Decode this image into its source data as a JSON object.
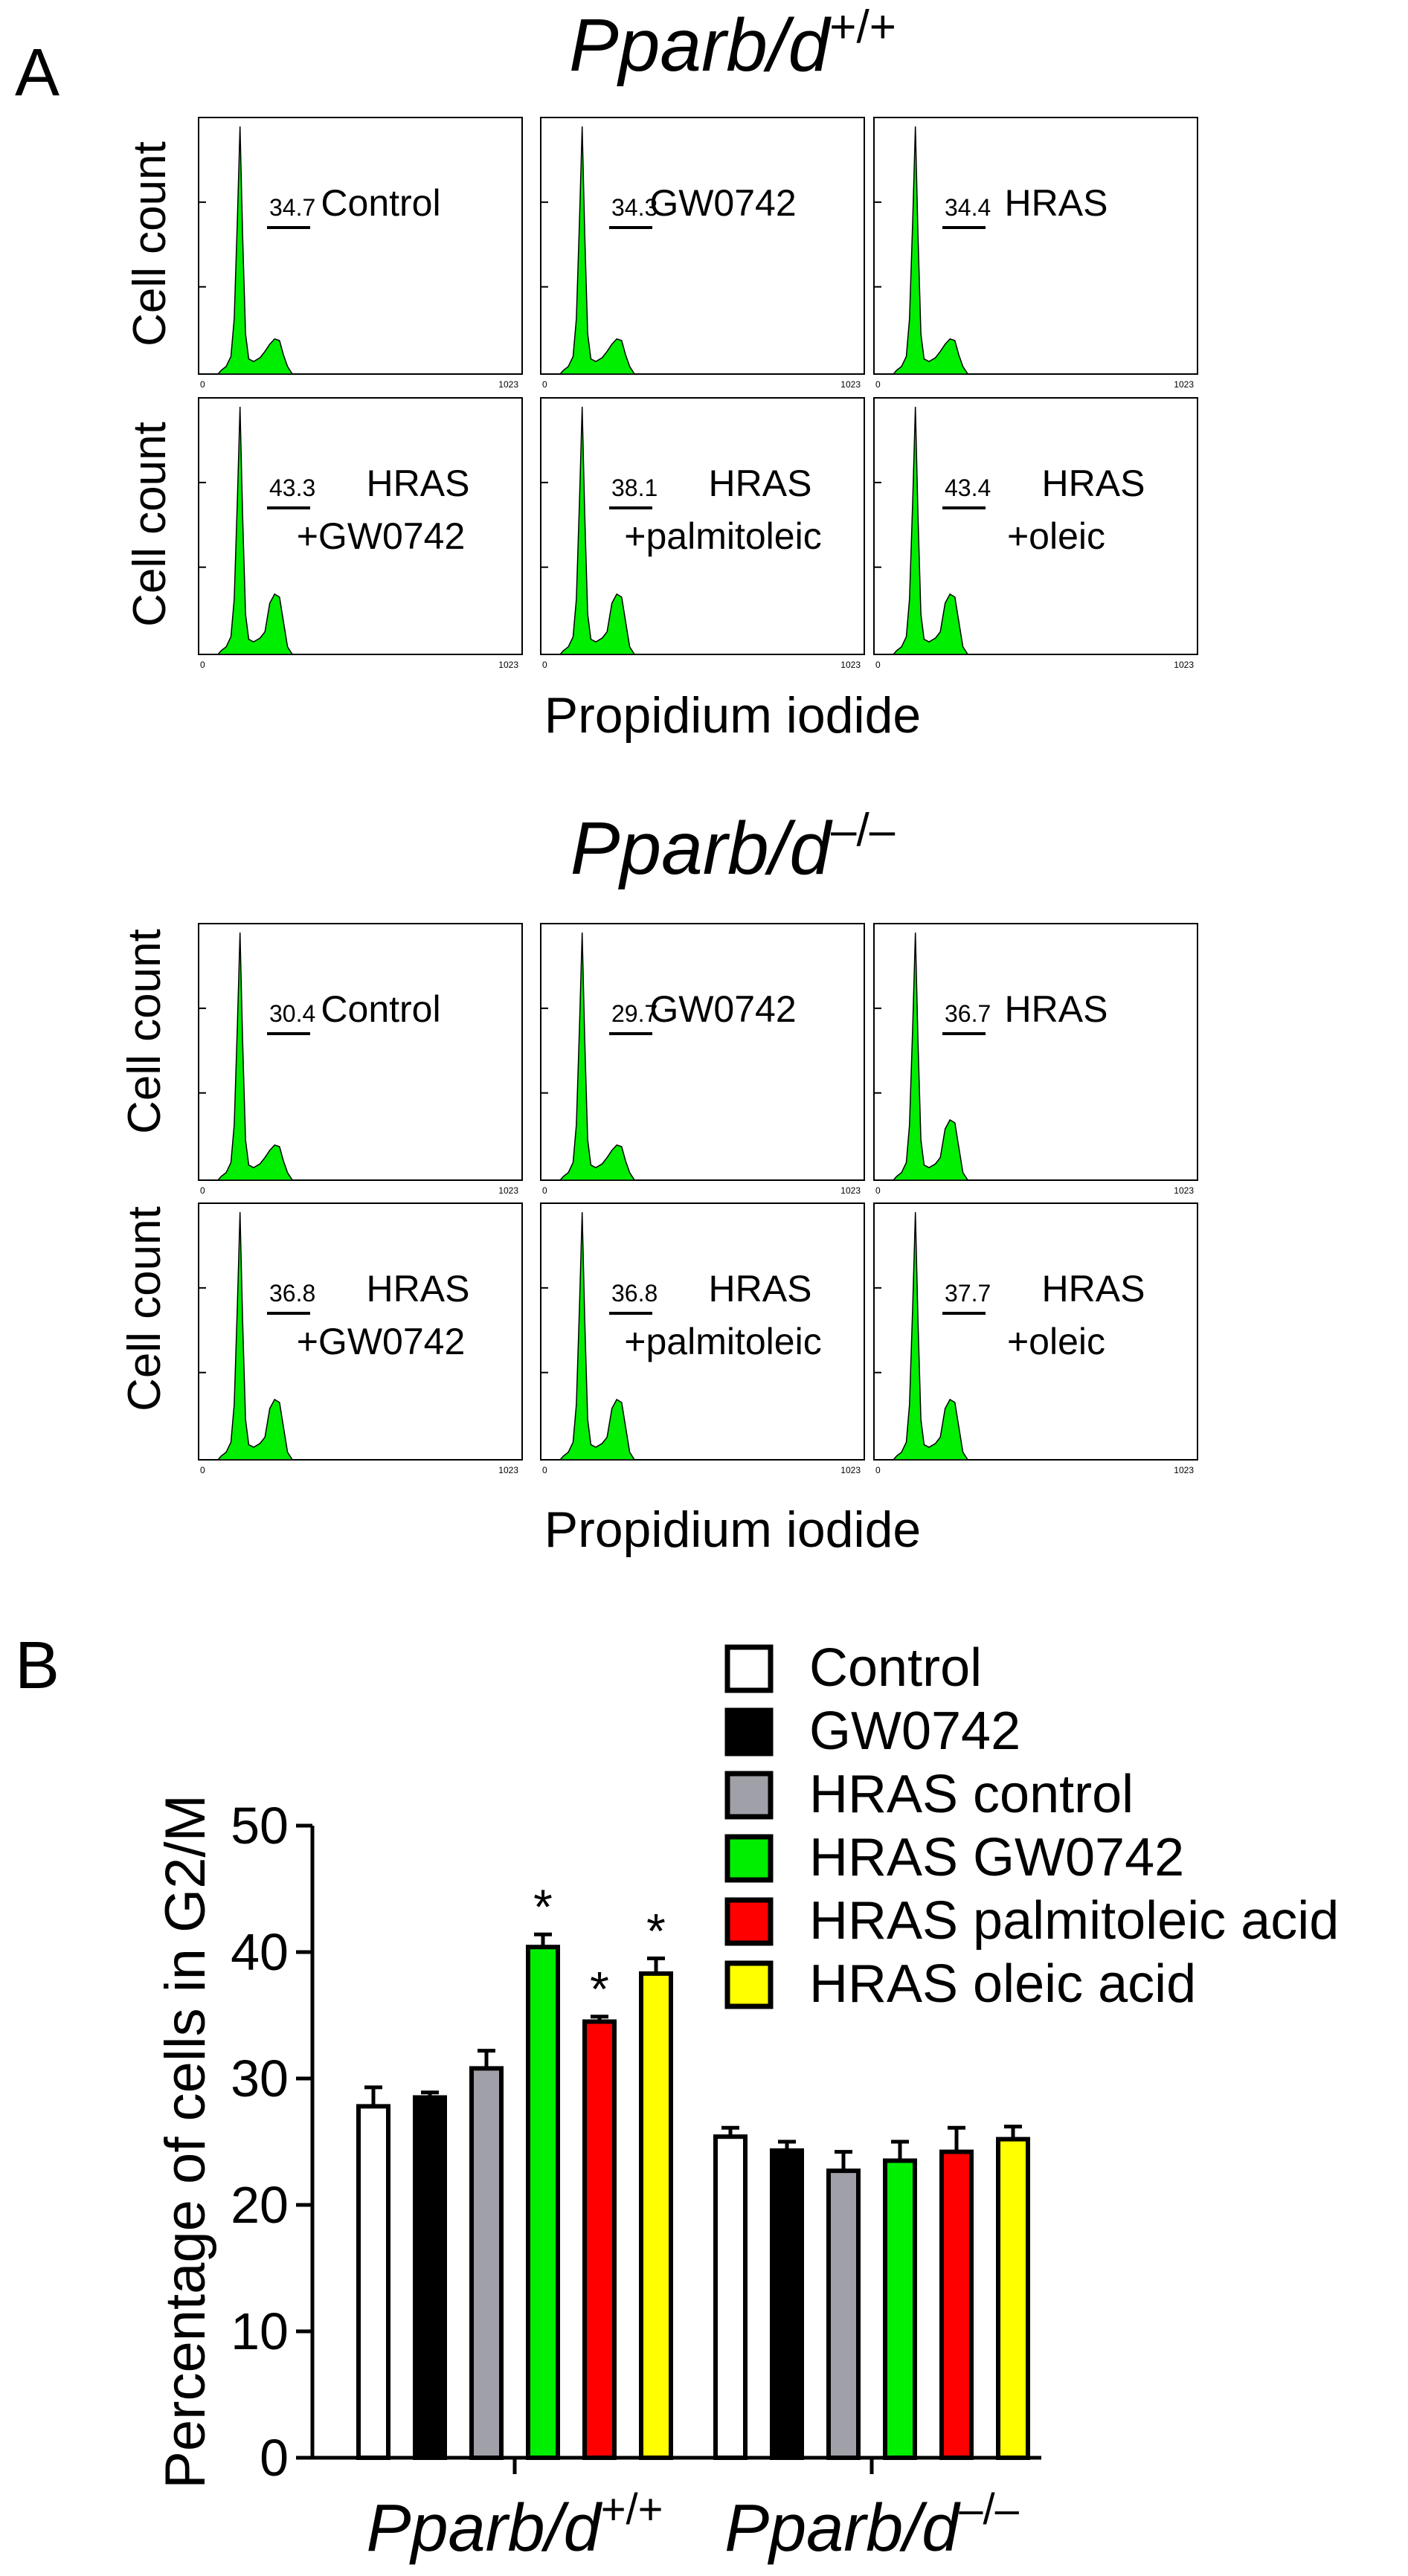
{
  "panel_a": {
    "label": "A",
    "x_axis_label": "Propidium iodide",
    "y_axis_label": "Cell count",
    "tick_min": "0",
    "tick_max": "1023",
    "histogram_color": "#00ee00",
    "groups": [
      {
        "title_main": "Pparb/d",
        "title_sup": "+/+",
        "rows": [
          [
            {
              "line1": "Control",
              "line2": "",
              "value": "34.7"
            },
            {
              "line1": "GW0742",
              "line2": "",
              "value": "34.3"
            },
            {
              "line1": "HRAS",
              "line2": "",
              "value": "34.4"
            }
          ],
          [
            {
              "line1": "HRAS",
              "line2": "+GW0742",
              "value": "43.3"
            },
            {
              "line1": "HRAS",
              "line2": "+palmitoleic",
              "value": "38.1"
            },
            {
              "line1": "HRAS",
              "line2": "+oleic",
              "value": "43.4"
            }
          ]
        ]
      },
      {
        "title_main": "Pparb/d",
        "title_sup": "–/–",
        "rows": [
          [
            {
              "line1": "Control",
              "line2": "",
              "value": "30.4"
            },
            {
              "line1": "GW0742",
              "line2": "",
              "value": "29.7"
            },
            {
              "line1": "HRAS",
              "line2": "",
              "value": "36.7"
            }
          ],
          [
            {
              "line1": "HRAS",
              "line2": "+GW0742",
              "value": "36.8"
            },
            {
              "line1": "HRAS",
              "line2": "+palmitoleic",
              "value": "36.8"
            },
            {
              "line1": "HRAS",
              "line2": "+oleic",
              "value": "37.7"
            }
          ]
        ]
      }
    ]
  },
  "chart_data": {
    "type": "bar",
    "panel_label": "B",
    "title": "",
    "ylabel": "Percentage of cells in G2/M",
    "xlabel": "",
    "ylim": [
      0,
      50
    ],
    "yticks": [
      0,
      10,
      20,
      30,
      40,
      50
    ],
    "categories": [
      {
        "main": "Pparb/d",
        "sup": "+/+"
      },
      {
        "main": "Pparb/d",
        "sup": "–/–"
      }
    ],
    "legend_position": "top-right",
    "series": [
      {
        "name": "Control",
        "color": "#ffffff",
        "values": [
          27.8,
          25.4
        ],
        "errors": [
          1.5,
          0.7
        ],
        "significant": [
          false,
          false
        ]
      },
      {
        "name": "GW0742",
        "color": "#000000",
        "values": [
          28.5,
          24.3
        ],
        "errors": [
          0.4,
          0.7
        ],
        "significant": [
          false,
          false
        ]
      },
      {
        "name": "HRAS control",
        "color": "#a0a0a8",
        "values": [
          30.8,
          22.7
        ],
        "errors": [
          1.4,
          1.5
        ],
        "significant": [
          false,
          false
        ]
      },
      {
        "name": "HRAS GW0742",
        "color": "#00ee00",
        "values": [
          40.4,
          23.5
        ],
        "errors": [
          1.0,
          1.5
        ],
        "significant": [
          true,
          false
        ]
      },
      {
        "name": "HRAS palmitoleic acid",
        "color": "#ff0000",
        "values": [
          34.5,
          24.2
        ],
        "errors": [
          0.4,
          1.9
        ],
        "significant": [
          true,
          false
        ]
      },
      {
        "name": "HRAS oleic acid",
        "color": "#ffff00",
        "values": [
          38.3,
          25.2
        ],
        "errors": [
          1.2,
          1.0
        ],
        "significant": [
          true,
          false
        ]
      }
    ],
    "significance_marker": "*"
  }
}
